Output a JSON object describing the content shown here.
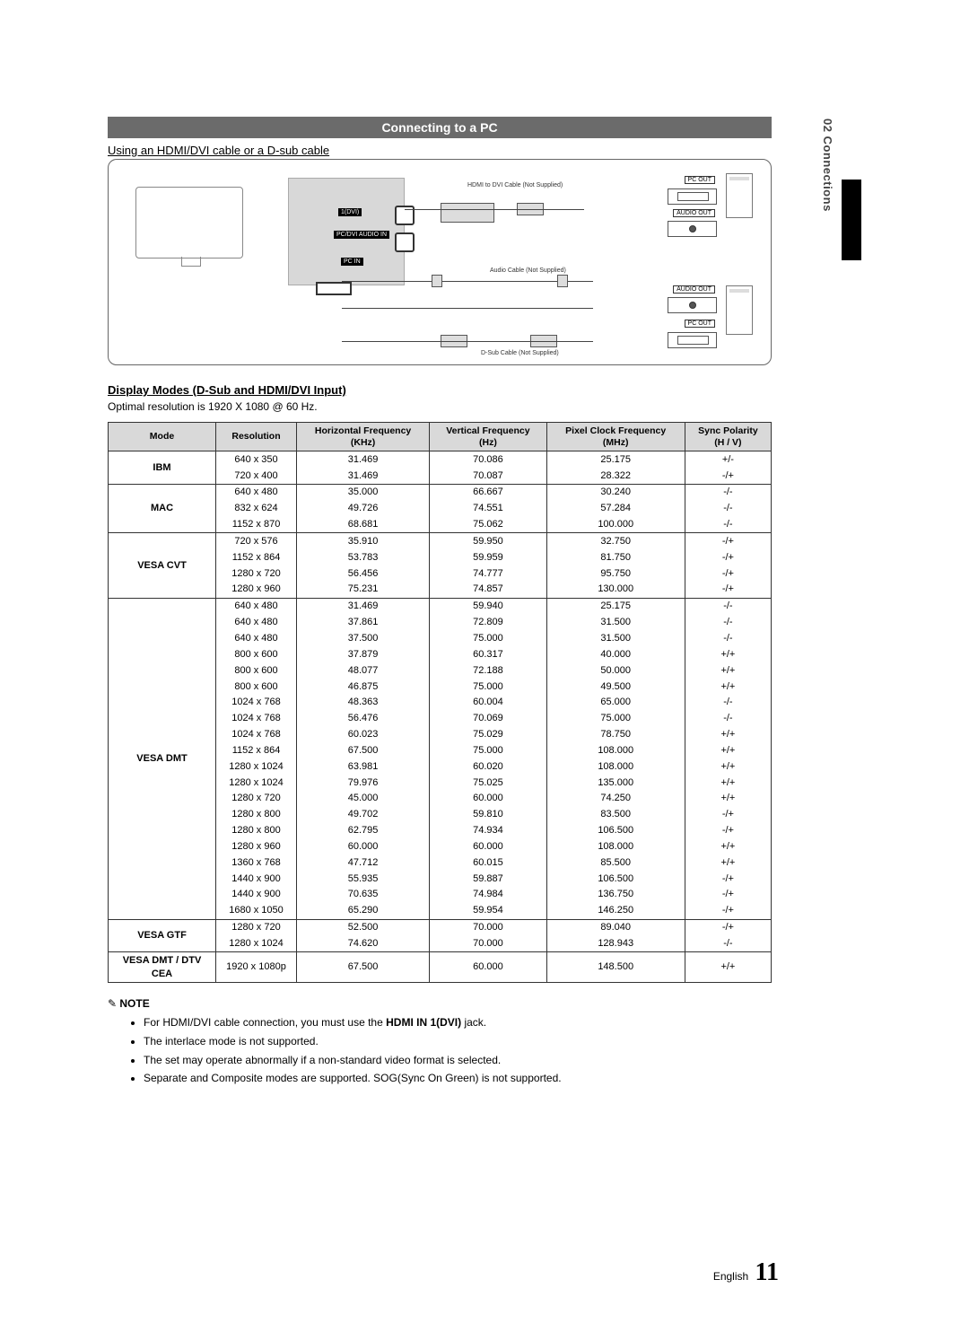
{
  "sideTab": "02  Connections",
  "header": "Connecting to a PC",
  "sub1": "Using an HDMI/DVI cable or a D-sub cable",
  "diagram": {
    "hdmiCable": "HDMI to DVI Cable (Not Supplied)",
    "audioCable": "Audio Cable (Not Supplied)",
    "dsubCable": "D-Sub Cable (Not Supplied)",
    "dvi": "1(DVI)",
    "pcdvi": "PC/DVI\nAUDIO IN",
    "pcin": "PC IN",
    "pcout": "PC OUT",
    "audioout": "AUDIO OUT"
  },
  "sub2": "Display Modes (D-Sub and HDMI/DVI Input)",
  "optimal": "Optimal resolution is 1920 X 1080 @ 60 Hz.",
  "columns": [
    "Mode",
    "Resolution",
    "Horizontal Frequency\n(KHz)",
    "Vertical Frequency\n(Hz)",
    "Pixel Clock Frequency\n(MHz)",
    "Sync Polarity\n(H / V)"
  ],
  "groups": [
    {
      "mode": "IBM",
      "rows": [
        [
          "640 x 350",
          "31.469",
          "70.086",
          "25.175",
          "+/-"
        ],
        [
          "720 x 400",
          "31.469",
          "70.087",
          "28.322",
          "-/+"
        ]
      ]
    },
    {
      "mode": "MAC",
      "rows": [
        [
          "640 x 480",
          "35.000",
          "66.667",
          "30.240",
          "-/-"
        ],
        [
          "832 x 624",
          "49.726",
          "74.551",
          "57.284",
          "-/-"
        ],
        [
          "1152 x 870",
          "68.681",
          "75.062",
          "100.000",
          "-/-"
        ]
      ]
    },
    {
      "mode": "VESA CVT",
      "rows": [
        [
          "720 x 576",
          "35.910",
          "59.950",
          "32.750",
          "-/+"
        ],
        [
          "1152 x 864",
          "53.783",
          "59.959",
          "81.750",
          "-/+"
        ],
        [
          "1280 x 720",
          "56.456",
          "74.777",
          "95.750",
          "-/+"
        ],
        [
          "1280 x 960",
          "75.231",
          "74.857",
          "130.000",
          "-/+"
        ]
      ]
    },
    {
      "mode": "VESA DMT",
      "rows": [
        [
          "640 x 480",
          "31.469",
          "59.940",
          "25.175",
          "-/-"
        ],
        [
          "640 x 480",
          "37.861",
          "72.809",
          "31.500",
          "-/-"
        ],
        [
          "640 x 480",
          "37.500",
          "75.000",
          "31.500",
          "-/-"
        ],
        [
          "800 x 600",
          "37.879",
          "60.317",
          "40.000",
          "+/+"
        ],
        [
          "800 x 600",
          "48.077",
          "72.188",
          "50.000",
          "+/+"
        ],
        [
          "800 x 600",
          "46.875",
          "75.000",
          "49.500",
          "+/+"
        ],
        [
          "1024 x 768",
          "48.363",
          "60.004",
          "65.000",
          "-/-"
        ],
        [
          "1024 x 768",
          "56.476",
          "70.069",
          "75.000",
          "-/-"
        ],
        [
          "1024 x 768",
          "60.023",
          "75.029",
          "78.750",
          "+/+"
        ],
        [
          "1152 x 864",
          "67.500",
          "75.000",
          "108.000",
          "+/+"
        ],
        [
          "1280 x 1024",
          "63.981",
          "60.020",
          "108.000",
          "+/+"
        ],
        [
          "1280 x 1024",
          "79.976",
          "75.025",
          "135.000",
          "+/+"
        ],
        [
          "1280 x 720",
          "45.000",
          "60.000",
          "74.250",
          "+/+"
        ],
        [
          "1280 x 800",
          "49.702",
          "59.810",
          "83.500",
          "-/+"
        ],
        [
          "1280 x 800",
          "62.795",
          "74.934",
          "106.500",
          "-/+"
        ],
        [
          "1280 x 960",
          "60.000",
          "60.000",
          "108.000",
          "+/+"
        ],
        [
          "1360 x 768",
          "47.712",
          "60.015",
          "85.500",
          "+/+"
        ],
        [
          "1440 x 900",
          "55.935",
          "59.887",
          "106.500",
          "-/+"
        ],
        [
          "1440 x 900",
          "70.635",
          "74.984",
          "136.750",
          "-/+"
        ],
        [
          "1680 x 1050",
          "65.290",
          "59.954",
          "146.250",
          "-/+"
        ]
      ]
    },
    {
      "mode": "VESA GTF",
      "rows": [
        [
          "1280 x 720",
          "52.500",
          "70.000",
          "89.040",
          "-/+"
        ],
        [
          "1280 x 1024",
          "74.620",
          "70.000",
          "128.943",
          "-/-"
        ]
      ]
    },
    {
      "mode": "VESA DMT / DTV CEA",
      "rows": [
        [
          "1920 x 1080p",
          "67.500",
          "60.000",
          "148.500",
          "+/+"
        ]
      ]
    }
  ],
  "noteTitle": "NOTE",
  "notes": [
    {
      "pre": "For HDMI/DVI cable connection, you must use the ",
      "hl": "HDMI IN 1(DVI)",
      "post": " jack."
    },
    {
      "pre": "The interlace mode is not supported.",
      "hl": "",
      "post": ""
    },
    {
      "pre": "The set may operate abnormally if a non-standard video format is selected.",
      "hl": "",
      "post": ""
    },
    {
      "pre": "Separate and Composite modes are supported. SOG(Sync On Green) is not supported.",
      "hl": "",
      "post": ""
    }
  ],
  "footerLang": "English",
  "pageNum": "11"
}
